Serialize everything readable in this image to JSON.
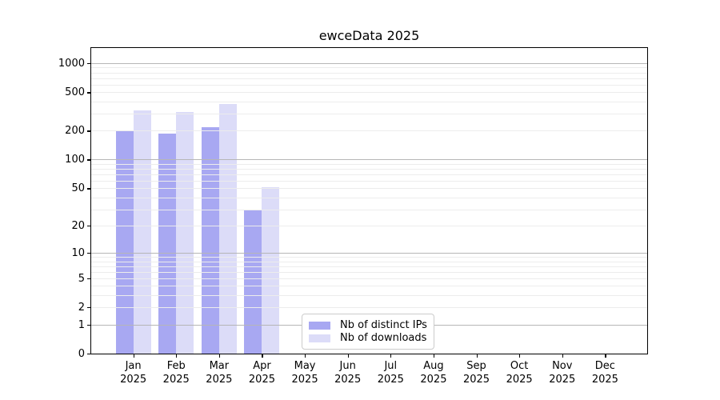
{
  "title": "ewceData 2025",
  "colors": {
    "ips": "#a8a8f2",
    "downloads": "#dcdcf8",
    "grid_major": "#b6b6b6",
    "grid_minor": "#ececec",
    "axis": "#000000",
    "legend_border": "#cccccc"
  },
  "legend": {
    "items": [
      {
        "key": "ips",
        "label": "Nb of distinct IPs"
      },
      {
        "key": "downloads",
        "label": "Nb of downloads"
      }
    ]
  },
  "chart_data": {
    "type": "bar",
    "title": "ewceData 2025",
    "categories": [
      "Jan",
      "Feb",
      "Mar",
      "Apr",
      "May",
      "Jun",
      "Jul",
      "Aug",
      "Sep",
      "Oct",
      "Nov",
      "Dec"
    ],
    "category_year": "2025",
    "series": [
      {
        "name": "Nb of distinct IPs",
        "color_key": "ips",
        "values": [
          195,
          184,
          213,
          29,
          null,
          null,
          null,
          null,
          null,
          null,
          null,
          null
        ]
      },
      {
        "name": "Nb of downloads",
        "color_key": "downloads",
        "values": [
          318,
          305,
          370,
          50,
          null,
          null,
          null,
          null,
          null,
          null,
          null,
          null
        ]
      }
    ],
    "yscale": "log1p",
    "ytick_labels": [
      1000,
      500,
      200,
      100,
      50,
      20,
      10,
      5,
      2,
      1,
      0
    ],
    "ylim": [
      0,
      1460
    ],
    "grid": true,
    "legend_position": "lower-center"
  }
}
